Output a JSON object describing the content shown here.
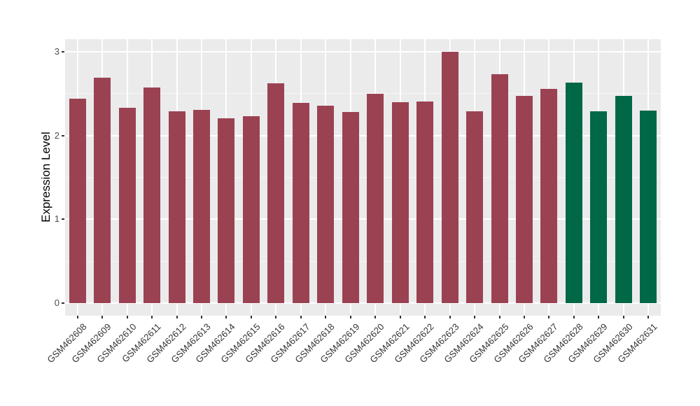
{
  "chart_data": {
    "type": "bar",
    "title": "",
    "xlabel": "",
    "ylabel": "Expression Level",
    "categories": [
      "GSM462608",
      "GSM462609",
      "GSM462610",
      "GSM462611",
      "GSM462612",
      "GSM462613",
      "GSM462614",
      "GSM462615",
      "GSM462616",
      "GSM462617",
      "GSM462618",
      "GSM462619",
      "GSM462620",
      "GSM462621",
      "GSM462622",
      "GSM462623",
      "GSM462624",
      "GSM462625",
      "GSM462626",
      "GSM462627",
      "GSM462628",
      "GSM462629",
      "GSM462630",
      "GSM462631"
    ],
    "values": [
      2.44,
      2.69,
      2.33,
      2.57,
      2.29,
      2.31,
      2.21,
      2.23,
      2.62,
      2.39,
      2.36,
      2.28,
      2.5,
      2.4,
      2.41,
      3.0,
      2.29,
      2.73,
      2.47,
      2.56,
      2.63,
      2.29,
      2.47,
      2.3
    ],
    "bar_colors": [
      "#9B4252",
      "#9B4252",
      "#9B4252",
      "#9B4252",
      "#9B4252",
      "#9B4252",
      "#9B4252",
      "#9B4252",
      "#9B4252",
      "#9B4252",
      "#9B4252",
      "#9B4252",
      "#9B4252",
      "#9B4252",
      "#9B4252",
      "#9B4252",
      "#9B4252",
      "#9B4252",
      "#9B4252",
      "#9B4252",
      "#006847",
      "#006847",
      "#006847",
      "#006847"
    ],
    "palette": {
      "group_red": "#9B4252",
      "group_green": "#006847"
    },
    "ylim": [
      0,
      3
    ],
    "yticks": [
      0,
      1,
      2,
      3
    ],
    "minor_ticks": [
      0.5,
      1.5,
      2.5
    ],
    "grid": true,
    "legend_position": "none",
    "panel_bg": "#EBEBEB",
    "grid_color": "#FFFFFF",
    "tick_label_color": "#4D4D4D",
    "x_label_rotation_deg": 45
  }
}
